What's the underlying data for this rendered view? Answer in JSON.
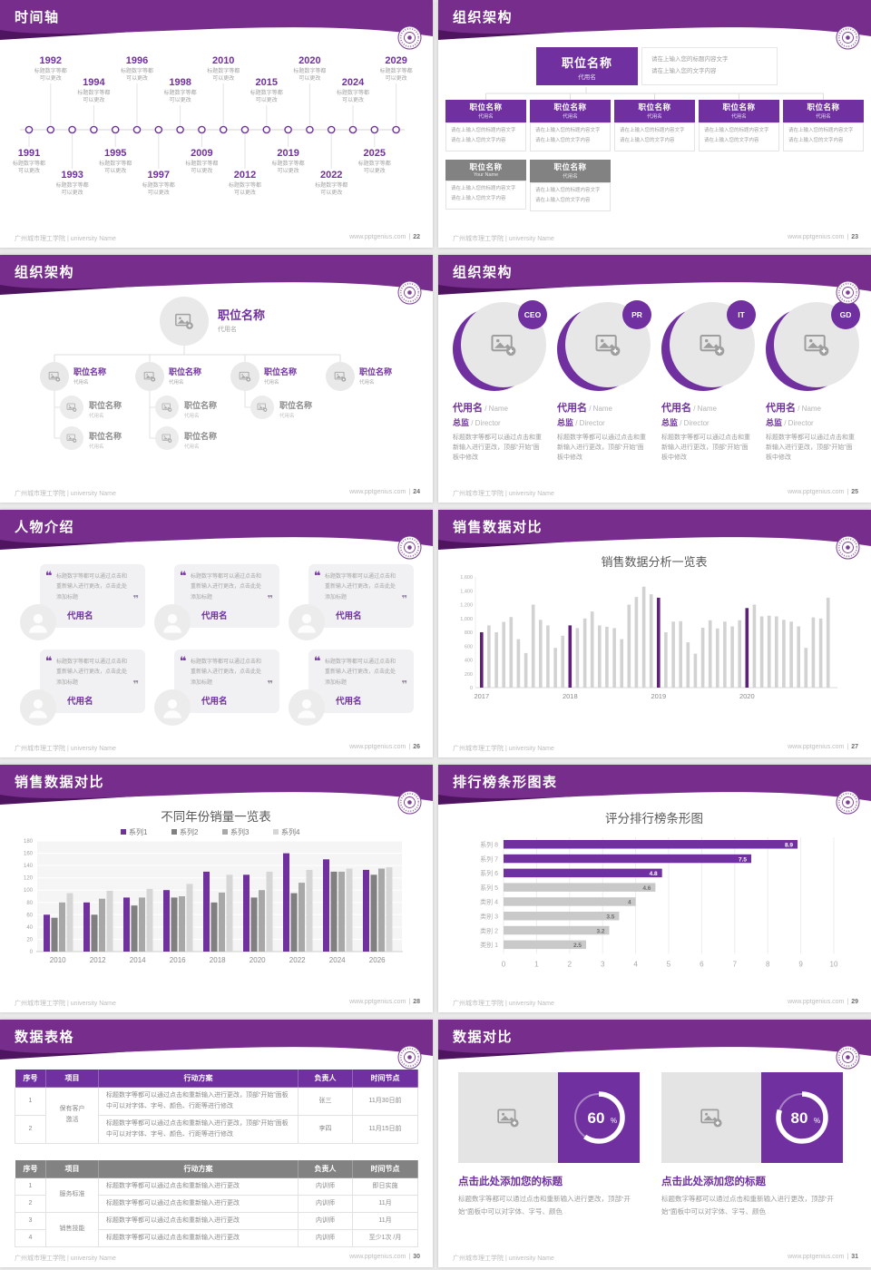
{
  "theme": {
    "purple": "#7030A0",
    "header_purple": "#772D8C",
    "header_dark": "#4F1460",
    "bar_gray": "#d2d2d2",
    "bar_dark_purple": "#5e2079"
  },
  "footer": {
    "university": "广州城市理工学院 | university Name",
    "site": "www.pptgenius.com",
    "sep": "|"
  },
  "placeholder": {
    "title_box": "职位名称",
    "alias": "代用名",
    "your_name": "Your Name",
    "info_line1": "请在上输入您的标题内容文字",
    "info_line2": "请在上输入您的文字内容",
    "edit_note": "标题数字等都可以通过点击和重新输入进行更改，顶部“开始”面板中修改",
    "timeline_desc1": "标题数字等都",
    "timeline_desc2": "可以更改"
  },
  "slides": {
    "s22": {
      "title": "时间轴",
      "page": "22",
      "top_years": [
        "1992",
        "1994",
        "1996",
        "1998",
        "2010",
        "2015",
        "2020",
        "2024",
        "2029"
      ],
      "bottom_years": [
        "1991",
        "1993",
        "1995",
        "1997",
        "2009",
        "2012",
        "2019",
        "2022",
        "2025"
      ]
    },
    "s23": {
      "title": "组织架构",
      "page": "23",
      "row1_count": 5,
      "row2_subs": [
        "Your Name",
        "代用名"
      ]
    },
    "s24": {
      "title": "组织架构",
      "page": "24",
      "children": 4,
      "grandchildren": [
        2,
        2,
        1,
        0
      ]
    },
    "s25": {
      "title": "组织架构",
      "page": "25",
      "badges": [
        "CEO",
        "PR",
        "IT",
        "GD"
      ],
      "name_cn": "代用名",
      "name_en": "Name",
      "role_cn": "总监",
      "role_en": "Director"
    },
    "s26": {
      "title": "人物介绍",
      "page": "26",
      "cards": 6,
      "quote": "标题数字等都可以通过点击和重新输入进行更改，点击此处添加标题",
      "name": "代用名"
    },
    "s27": {
      "title": "销售数据对比",
      "page": "27"
    },
    "s28": {
      "title": "销售数据对比",
      "page": "28"
    },
    "s29": {
      "title": "排行榜条形图表",
      "page": "29"
    },
    "s30": {
      "title": "数据表格",
      "page": "30",
      "table1": {
        "headers": [
          "序号",
          "项目",
          "行动方案",
          "负责人",
          "时间节点"
        ],
        "group": "保有客户激活",
        "row_text": "标题数字等都可以通过点击和重新输入进行更改，顶部“开始”面板中可以对字体、字号、颜色、行距等进行修改",
        "rows": [
          {
            "no": "1",
            "owner": "张三",
            "time": "11月30日前"
          },
          {
            "no": "2",
            "owner": "李四",
            "time": "11月15日前"
          }
        ]
      },
      "table2": {
        "headers": [
          "序号",
          "项目",
          "行动方案",
          "负责人",
          "时间节点"
        ],
        "groups": [
          "服务标准",
          "销售技能"
        ],
        "row_text": "标题数字等都可以通过点击和重新输入进行更改",
        "rows": [
          {
            "no": "1",
            "owner": "内训师",
            "time": "即日实施"
          },
          {
            "no": "2",
            "owner": "内训师",
            "time": "11月"
          },
          {
            "no": "3",
            "owner": "内训师",
            "time": "11月"
          },
          {
            "no": "4",
            "owner": "内训师",
            "time": "至少1次 /月"
          }
        ]
      }
    },
    "s31": {
      "title": "数据对比",
      "page": "31",
      "panels": [
        {
          "percent": 60
        },
        {
          "percent": 80
        }
      ],
      "heading": "点击此处添加您的标题",
      "body": "标题数字等都可以通过点击和重新输入进行更改，顶部“开始”面板中可以对字体、字号、颜色"
    }
  },
  "chart_data": [
    {
      "type": "bar",
      "title": "销售数据分析一览表",
      "xlabel": "",
      "ylabel": "",
      "ylim": [
        0,
        1600
      ],
      "ytick_step": 200,
      "grid": false,
      "x_group_labels": [
        "2017",
        "2018",
        "2019",
        "2020"
      ],
      "group_start_indices": [
        0,
        12,
        24,
        36
      ],
      "highlight_indices": [
        0,
        12,
        24,
        36
      ],
      "values": [
        800,
        900,
        800,
        950,
        1020,
        700,
        500,
        1200,
        980,
        900,
        575,
        750,
        900,
        860,
        1000,
        1100,
        900,
        880,
        860,
        700,
        1200,
        1310,
        1460,
        1350,
        1300,
        800,
        955,
        960,
        655,
        490,
        865,
        975,
        855,
        955,
        885,
        975,
        1150,
        1200,
        1030,
        1040,
        1030,
        980,
        955,
        885,
        575,
        1015,
        1000,
        1300
      ],
      "bar_color": "#d2d2d2",
      "highlight_color": "#5e2079"
    },
    {
      "type": "bar",
      "title": "不同年份销量一览表",
      "xlabel": "",
      "ylabel": "",
      "ylim": [
        0,
        180
      ],
      "ytick_step": 20,
      "grid": true,
      "legend_position": "top",
      "categories": [
        "2010",
        "2012",
        "2014",
        "2016",
        "2018",
        "2020",
        "2022",
        "2024",
        "2026"
      ],
      "series": [
        {
          "name": "系列1",
          "color": "#7030A0",
          "values": [
            60,
            80,
            88,
            100,
            130,
            125,
            160,
            150,
            133
          ]
        },
        {
          "name": "系列2",
          "color": "#808080",
          "values": [
            55,
            60,
            75,
            88,
            80,
            88,
            95,
            130,
            125
          ]
        },
        {
          "name": "系列3",
          "color": "#a8a8a8",
          "values": [
            80,
            86,
            88,
            90,
            96,
            100,
            112,
            130,
            135
          ]
        },
        {
          "name": "系列4",
          "color": "#d6d6d6",
          "values": [
            95,
            99,
            102,
            110,
            125,
            130,
            133,
            135,
            137
          ]
        }
      ]
    },
    {
      "type": "bar-horizontal",
      "title": "评分排行榜条形图",
      "xlim": [
        0,
        10
      ],
      "xtick_step": 1,
      "grid": true,
      "categories": [
        "系列 8",
        "系列 7",
        "系列 6",
        "系列 5",
        "类别 4",
        "类别 3",
        "类别 2",
        "类别 1"
      ],
      "values": [
        8.9,
        7.5,
        4.8,
        4.6,
        4,
        3.5,
        3.2,
        2.5
      ],
      "purple_count": 3,
      "bar_color_highlight": "#7030A0",
      "bar_color": "#c9c9c9"
    }
  ]
}
